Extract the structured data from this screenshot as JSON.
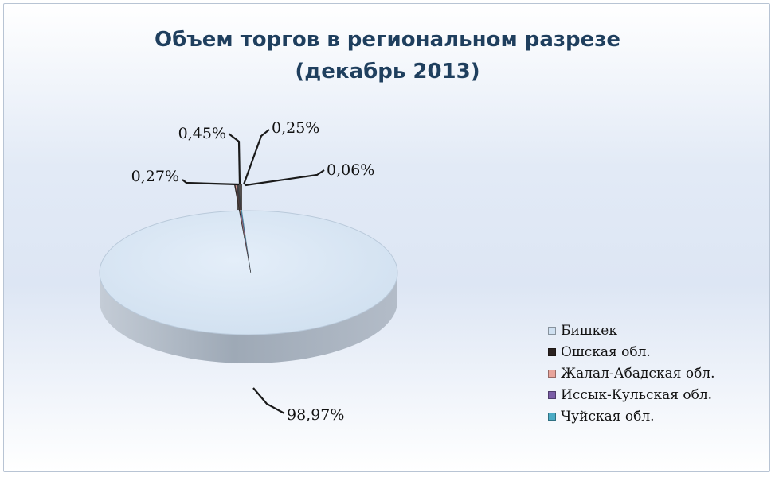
{
  "chart_data": {
    "type": "pie",
    "title_line1": "Объем торгов в региональном разрезе",
    "title_line2": "(декабрь 2013)",
    "slices": [
      {
        "name": "Бишкек",
        "value": 98.97,
        "label": "98,97%",
        "color": "#cfe0f1"
      },
      {
        "name": "Ошская обл.",
        "value": 0.45,
        "label": "0,45%",
        "color": "#2b2220"
      },
      {
        "name": "Жалал-Абадская обл.",
        "value": 0.27,
        "label": "0,27%",
        "color": "#e8a49b"
      },
      {
        "name": "Иссык-Кульская обл.",
        "value": 0.25,
        "label": "0,25%",
        "color": "#7b5ea7"
      },
      {
        "name": "Чуйская обл.",
        "value": 0.06,
        "label": "0,06%",
        "color": "#4bacc6"
      }
    ],
    "legend_position": "right"
  }
}
